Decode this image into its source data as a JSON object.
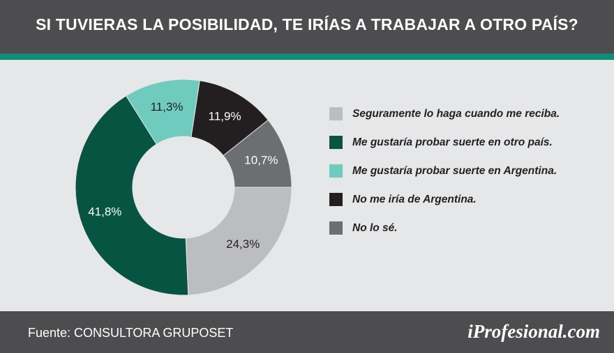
{
  "header": {
    "title": "SI TUVIERAS LA POSIBILIDAD, TE IRÍAS A TRABAJAR A OTRO PAÍS?"
  },
  "chart_data": {
    "type": "pie",
    "variant": "donut",
    "title": "SI TUVIERAS LA POSIBILIDAD, TE IRÍAS A TRABAJAR A OTRO PAÍS?",
    "unit": "%",
    "slices": [
      {
        "name": "Seguramente lo haga cuando me reciba.",
        "value": 24.3,
        "label": "24,3%",
        "color": "#bcbdc0",
        "label_color": "#231f20"
      },
      {
        "name": "Me gustaría probar suerte en otro país.",
        "value": 41.8,
        "label": "41,8%",
        "color": "#075443",
        "label_color": "#ffffff"
      },
      {
        "name": "Me gustaría probar suerte en Argentina.",
        "value": 11.3,
        "label": "11,3%",
        "color": "#6fcbbe",
        "label_color": "#231f20"
      },
      {
        "name": "No me iría de Argentina.",
        "value": 11.9,
        "label": "11,9%",
        "color": "#231f20",
        "label_color": "#ffffff"
      },
      {
        "name": "No lo sé.",
        "value": 10.7,
        "label": "10,7%",
        "color": "#6d6e71",
        "label_color": "#ffffff"
      }
    ],
    "legend_position": "right"
  },
  "legend": {
    "items": [
      {
        "label": "Seguramente lo haga cuando me reciba.",
        "color": "#bcbdc0"
      },
      {
        "label": "Me gustaría probar suerte en otro país.",
        "color": "#075443"
      },
      {
        "label": "Me gustaría probar suerte en Argentina.",
        "color": "#6fcbbe"
      },
      {
        "label": "No me iría de Argentina.",
        "color": "#231f20"
      },
      {
        "label": "No lo sé.",
        "color": "#6d6e71"
      }
    ]
  },
  "footer": {
    "source": "Fuente: CONSULTORA GRUPOSET",
    "brand": "iProfesional.com"
  },
  "colors": {
    "header_bg": "#4d4d4f",
    "accent": "#0f8f7a",
    "background": "#e6e7e8"
  }
}
